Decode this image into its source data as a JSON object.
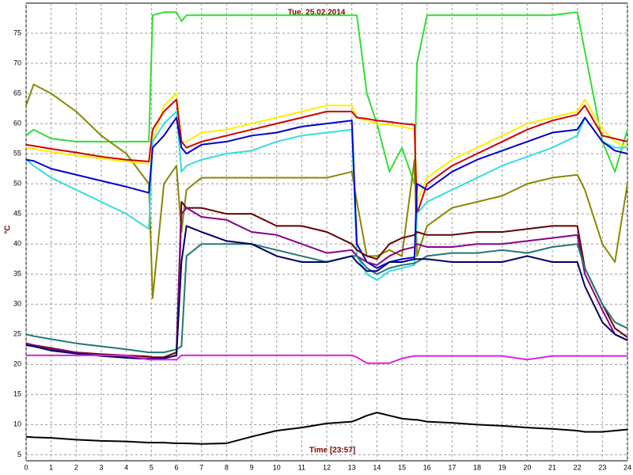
{
  "chart_data": {
    "type": "line",
    "title": "Tue, 25.02.2014",
    "x_label": "Time [23:57]",
    "y_label": "°C",
    "xlim": [
      0,
      24
    ],
    "xticks": [
      0,
      1,
      2,
      3,
      4,
      5,
      6,
      7,
      8,
      9,
      10,
      11,
      12,
      13,
      14,
      15,
      16,
      17,
      18,
      19,
      20,
      21,
      22,
      23,
      24
    ],
    "ylim": [
      4,
      80
    ],
    "yticks": [
      5,
      10,
      15,
      20,
      25,
      30,
      35,
      40,
      45,
      50,
      55,
      60,
      65,
      70,
      75
    ],
    "grid": true,
    "x": [
      0,
      0.3,
      1,
      2,
      3,
      4,
      4.9,
      5.05,
      5.5,
      6,
      6.2,
      6.4,
      7,
      8,
      9,
      10,
      11,
      12,
      13,
      13.2,
      13.6,
      14,
      14.5,
      15,
      15.5,
      15.6,
      16,
      17,
      18,
      19,
      20,
      21,
      22,
      22.3,
      23,
      23.5,
      24
    ],
    "series": [
      {
        "color": "#33dd33",
        "values": [
          58,
          59,
          57.5,
          57,
          57,
          57,
          57,
          78,
          78.5,
          78.5,
          77,
          78,
          78,
          78,
          78,
          78,
          78,
          78,
          78,
          78,
          65,
          60,
          52,
          56,
          50,
          70,
          78,
          78,
          78,
          78,
          78,
          78,
          78.5,
          72,
          57,
          52,
          59
        ]
      },
      {
        "color": "#888800",
        "values": [
          63,
          66.5,
          65,
          62,
          58,
          55,
          50,
          31,
          50,
          53,
          42,
          49,
          51,
          51,
          51,
          51,
          51,
          51,
          52,
          47,
          38,
          38,
          39,
          38,
          54,
          38,
          43,
          46,
          47,
          48,
          50,
          51,
          51.5,
          49,
          40,
          37,
          50
        ]
      },
      {
        "color": "#ffee00",
        "values": [
          56,
          55.8,
          55.3,
          54.7,
          54.2,
          53.7,
          53.3,
          57,
          63,
          65,
          57,
          57,
          58.5,
          59,
          60,
          61,
          62,
          63,
          63,
          61,
          60.5,
          60,
          59.8,
          59.5,
          59,
          47,
          51,
          54,
          56,
          58,
          60,
          61,
          62,
          64,
          59,
          57,
          56
        ]
      },
      {
        "color": "#cc0000",
        "values": [
          56.5,
          56.3,
          55.8,
          55.2,
          54.5,
          54,
          53.7,
          59,
          62,
          64,
          57,
          56,
          57,
          58,
          59,
          60,
          61,
          62,
          62,
          61,
          60.8,
          60.5,
          60.3,
          60,
          59.8,
          45,
          50,
          53,
          55,
          57,
          59,
          60.5,
          61.5,
          63,
          58,
          57.5,
          57
        ]
      },
      {
        "color": "#33dddd",
        "values": [
          54,
          53,
          51,
          49,
          47,
          45,
          42.5,
          57,
          60,
          62,
          52,
          53,
          54,
          55,
          55.5,
          57,
          58,
          58.5,
          59,
          38,
          35,
          34,
          35.5,
          36,
          36.5,
          45,
          47,
          49,
          51,
          53,
          54.5,
          56,
          58,
          61,
          57,
          56,
          56
        ]
      },
      {
        "color": "#0000cc",
        "values": [
          54,
          53.8,
          52.5,
          51.5,
          50.5,
          49.5,
          48.5,
          56,
          58,
          61,
          56,
          55,
          56.5,
          57,
          58,
          58.5,
          59.5,
          60,
          60.5,
          40,
          37,
          36,
          37,
          37.5,
          37.8,
          50,
          49,
          52,
          54,
          55.5,
          57,
          58.5,
          59,
          61,
          57,
          55.5,
          55
        ]
      },
      {
        "color": "#660000",
        "values": [
          23.5,
          23.2,
          22.7,
          22,
          21.7,
          21.5,
          21.3,
          21.2,
          21.2,
          22,
          47,
          46,
          46,
          45,
          45,
          43,
          43,
          42,
          40,
          39,
          38,
          37.5,
          40,
          41,
          41.5,
          42,
          41.5,
          41.5,
          42,
          42,
          42.5,
          43,
          43,
          36,
          30,
          26,
          24.5
        ]
      },
      {
        "color": "#880088",
        "values": [
          23.5,
          23.2,
          22.5,
          22,
          21.5,
          21.2,
          21,
          21,
          21,
          21.5,
          45,
          46,
          44.5,
          44,
          42,
          41.5,
          40,
          38.5,
          39,
          38,
          37,
          36.5,
          38,
          39,
          39.5,
          40,
          39.5,
          39.5,
          40,
          40,
          40.5,
          41,
          41.5,
          35,
          29,
          25,
          24
        ]
      },
      {
        "color": "#227777",
        "values": [
          25,
          24.7,
          24.2,
          23.5,
          23,
          22.5,
          22,
          22,
          22,
          22.5,
          23,
          38,
          40,
          40,
          40,
          39,
          38,
          37,
          38,
          38,
          36,
          35,
          36,
          36.5,
          36.8,
          37,
          38,
          38.5,
          38.5,
          39,
          38.5,
          39.5,
          40,
          36,
          30,
          27,
          26
        ]
      },
      {
        "color": "#000066",
        "values": [
          23.2,
          23,
          22.3,
          21.8,
          21.4,
          21.1,
          20.9,
          20.9,
          21,
          21.5,
          37,
          43,
          42,
          40.5,
          40,
          38,
          37,
          37,
          38,
          37,
          35.5,
          35.5,
          37,
          37,
          37.5,
          37.5,
          37.5,
          37,
          37,
          37,
          38,
          37,
          37,
          33,
          27,
          25,
          24
        ]
      },
      {
        "color": "#dd22dd",
        "values": [
          21.5,
          21.5,
          21.5,
          21.5,
          21.5,
          21.5,
          20.8,
          20.8,
          20.8,
          20.8,
          21.5,
          21.5,
          21.5,
          21.5,
          21.5,
          21.5,
          21.5,
          21.5,
          21.5,
          21.2,
          20.2,
          20.2,
          20.2,
          21,
          21.4,
          21.4,
          21.4,
          21.4,
          21.4,
          21.4,
          20.8,
          21.4,
          21.4,
          21.4,
          21.4,
          21.4,
          21.4
        ]
      },
      {
        "color": "#000000",
        "values": [
          8,
          7.9,
          7.8,
          7.5,
          7.3,
          7.2,
          7,
          7,
          7,
          6.9,
          6.9,
          6.9,
          6.8,
          6.9,
          8,
          9,
          9.5,
          10.2,
          10.5,
          10.8,
          11.5,
          12,
          11.5,
          11,
          10.8,
          10.8,
          10.5,
          10.3,
          10,
          9.8,
          9.5,
          9.3,
          9,
          8.8,
          8.8,
          9,
          9.2
        ]
      }
    ]
  }
}
